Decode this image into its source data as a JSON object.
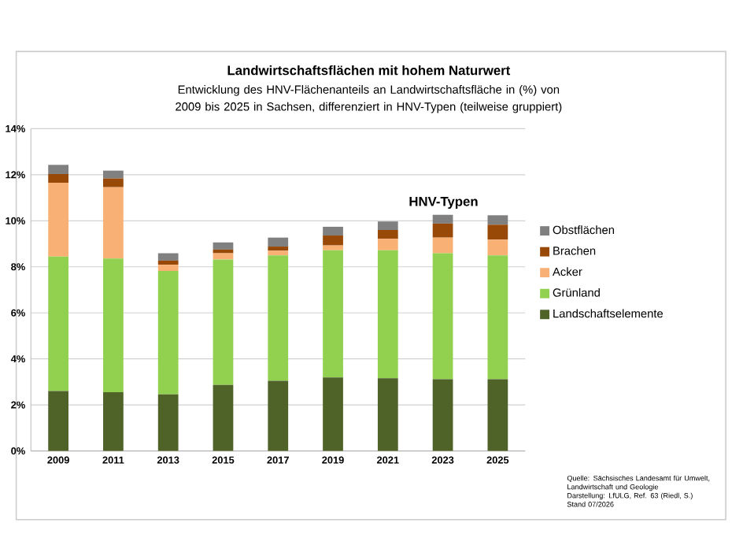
{
  "chart_data": {
    "type": "bar",
    "stacked": true,
    "title": "Landwirtschaftsflächen mit hohem Naturwert",
    "subtitle": "Entwicklung des HNV-Flächenanteils an Landwirtschaftsfläche in (%) von 2009 bis 2025 in Sachsen, differenziert in HNV-Typen (teilweise gruppiert)",
    "legend_title": "HNV-Typen",
    "legend": "right",
    "grid": "y",
    "categories": [
      "2009",
      "2011",
      "2013",
      "2015",
      "2017",
      "2019",
      "2021",
      "2023",
      "2025"
    ],
    "ylim": [
      0,
      14
    ],
    "yticks": [
      {
        "value": 0,
        "label": "0%"
      },
      {
        "value": 2,
        "label": "2%"
      },
      {
        "value": 4,
        "label": "4%"
      },
      {
        "value": 6,
        "label": "6%"
      },
      {
        "value": 8,
        "label": "8%"
      },
      {
        "value": 10,
        "label": "10%"
      },
      {
        "value": 12,
        "label": "12%"
      },
      {
        "value": 14,
        "label": "14%"
      }
    ],
    "series": [
      {
        "name": "Landschaftselemente",
        "color": "#4f6228",
        "values": [
          2.6,
          2.55,
          2.46,
          2.87,
          3.05,
          3.19,
          3.16,
          3.12,
          3.12
        ]
      },
      {
        "name": "Grünland",
        "color": "#92d050",
        "values": [
          5.85,
          5.81,
          5.36,
          5.45,
          5.45,
          5.53,
          5.56,
          5.47,
          5.38
        ]
      },
      {
        "name": "Acker",
        "color": "#f9b074",
        "values": [
          3.2,
          3.1,
          0.27,
          0.27,
          0.2,
          0.21,
          0.5,
          0.68,
          0.68
        ]
      },
      {
        "name": "Brachen",
        "color": "#984807",
        "values": [
          0.38,
          0.38,
          0.18,
          0.16,
          0.18,
          0.43,
          0.38,
          0.61,
          0.65
        ]
      },
      {
        "name": "Obstflächen",
        "color": "#808080",
        "values": [
          0.4,
          0.34,
          0.32,
          0.31,
          0.39,
          0.38,
          0.37,
          0.38,
          0.41
        ]
      }
    ],
    "annotations": [
      "Quelle: Sächsisches Landesamt für Umwelt, Landwirtschaft und Geologie",
      "Darstellung: LfULG, Ref. 63 (Riedl, S.)",
      "Stand 07/2026"
    ]
  }
}
